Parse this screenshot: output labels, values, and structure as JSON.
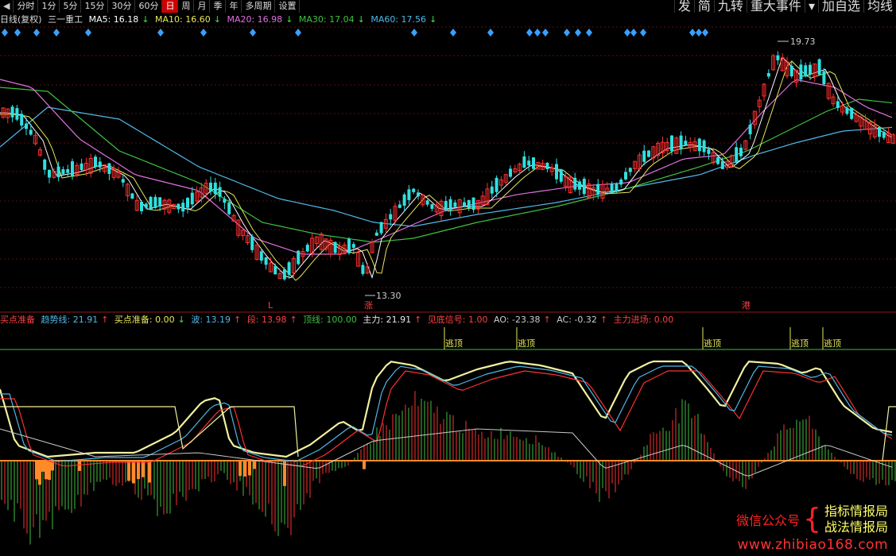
{
  "toolbar": {
    "left": [
      {
        "label": "◀",
        "active": false
      },
      {
        "label": "分时",
        "active": false
      },
      {
        "label": "1分",
        "active": false
      },
      {
        "label": "5分",
        "active": false
      },
      {
        "label": "15分",
        "active": false
      },
      {
        "label": "30分",
        "active": false
      },
      {
        "label": "60分",
        "active": false
      },
      {
        "label": "日",
        "active": true
      },
      {
        "label": "周",
        "active": false
      },
      {
        "label": "月",
        "active": false
      },
      {
        "label": "季",
        "active": false
      },
      {
        "label": "年",
        "active": false
      },
      {
        "label": "多周期",
        "active": false
      },
      {
        "label": "设置",
        "active": false
      }
    ],
    "right": [
      "发",
      "简",
      "九转",
      "重大事件",
      "▾",
      "加自选",
      "均线"
    ]
  },
  "main_legend": {
    "period": "日线(复权)",
    "stock": "三一重工",
    "ma5": "MA5: 16.18",
    "ma5_arrow": "↓",
    "ma10": "MA10: 16.60",
    "ma10_arrow": "↓",
    "ma20": "MA20: 16.98",
    "ma20_arrow": "↓",
    "ma30": "MA30: 17.04",
    "ma30_arrow": "↓",
    "ma60": "MA60: 17.56",
    "ma60_arrow": "↓"
  },
  "colors": {
    "ma5": "#ffffff",
    "ma10": "#e8e85a",
    "ma20": "#e070e0",
    "ma30": "#40c040",
    "ma60": "#4fb8e8",
    "up": "#ff3030",
    "down": "#30e0e0",
    "diamond": "#3aa0ff"
  },
  "annotations": {
    "high_label": "19.73",
    "low_label": "13.30",
    "markers": [
      "L",
      "涨",
      "港"
    ]
  },
  "indicator_legend": {
    "buy_prep": "买点准备",
    "trend": "趋势线: 21.91",
    "trend_arrow": "↑",
    "buy_prep2": "买点准备: 0.00",
    "buy_prep2_arrow": "↓",
    "wave": "波: 13.19",
    "wave_arrow": "↑",
    "seg": "段: 13.98",
    "seg_arrow": "↑",
    "top": "顶线: 100.00",
    "main": "主力: 21.91",
    "main_arrow": "↑",
    "bottom_signal": "见底信号: 1.00",
    "ao": "AO: -23.38",
    "ao_arrow": "↑",
    "ac": "AC: -0.32",
    "ac_arrow": "↑",
    "main_entry": "主力进场: 0.00"
  },
  "escape_labels": [
    "逃顶",
    "逃顶",
    "逃顶",
    "逃顶",
    "逃顶"
  ],
  "watermark": {
    "wechat": "微信公众号",
    "name1": "指标情报局",
    "name2": "战法情报局",
    "site": "www.zhibiao168.com"
  }
}
